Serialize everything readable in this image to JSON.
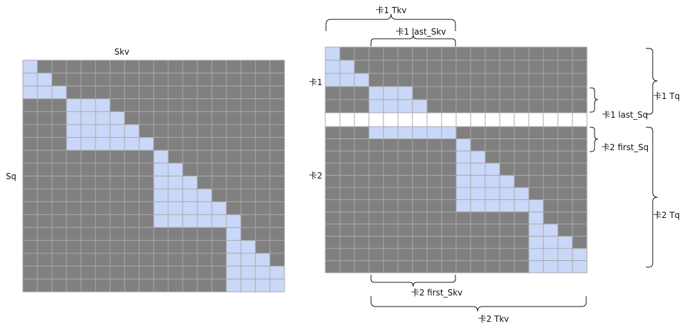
{
  "left_diagram": {
    "col_label": "Skv",
    "row_label": "Sq",
    "rows": 18,
    "cols": 18,
    "mask_row_ranges": [
      [
        0,
        0
      ],
      [
        0,
        1
      ],
      [
        0,
        2
      ],
      [
        3,
        5
      ],
      [
        3,
        6
      ],
      [
        3,
        7
      ],
      [
        3,
        8
      ],
      [
        9,
        9
      ],
      [
        9,
        10
      ],
      [
        9,
        11
      ],
      [
        9,
        12
      ],
      [
        9,
        13
      ],
      [
        9,
        14
      ],
      [
        14,
        14
      ],
      [
        14,
        15
      ],
      [
        14,
        16
      ],
      [
        14,
        17
      ],
      [
        14,
        18
      ]
    ]
  },
  "right_diagram": {
    "cols": 18,
    "card1_rows": [
      [
        0,
        0
      ],
      [
        0,
        1
      ],
      [
        0,
        2
      ],
      [
        3,
        5
      ],
      [
        3,
        6
      ]
    ],
    "card2_rows": [
      [
        3,
        8
      ],
      [
        9,
        9
      ],
      [
        9,
        10
      ],
      [
        9,
        11
      ],
      [
        9,
        12
      ],
      [
        9,
        13
      ],
      [
        9,
        14
      ],
      [
        14,
        14
      ],
      [
        14,
        15
      ],
      [
        14,
        16
      ],
      [
        14,
        17
      ],
      [
        14,
        18
      ]
    ],
    "labels": {
      "card1_row": "卡1",
      "card2_row": "卡2",
      "card1_tkv": "卡1 Tkv",
      "card1_last_skv": "卡1 last_Skv",
      "card1_tq": "卡1 Tq",
      "card1_last_sq": "卡1 last_Sq",
      "card2_first_sq": "卡2 first_Sq",
      "card2_tq": "卡2 Tq",
      "card2_first_skv": "卡2  first_Skv",
      "card2_tkv": "卡2 Tkv"
    }
  },
  "colors": {
    "masked": "#808080",
    "attended": "#c9d7f8",
    "gridline": "#aaaaaa",
    "gap": "#ffffff"
  }
}
